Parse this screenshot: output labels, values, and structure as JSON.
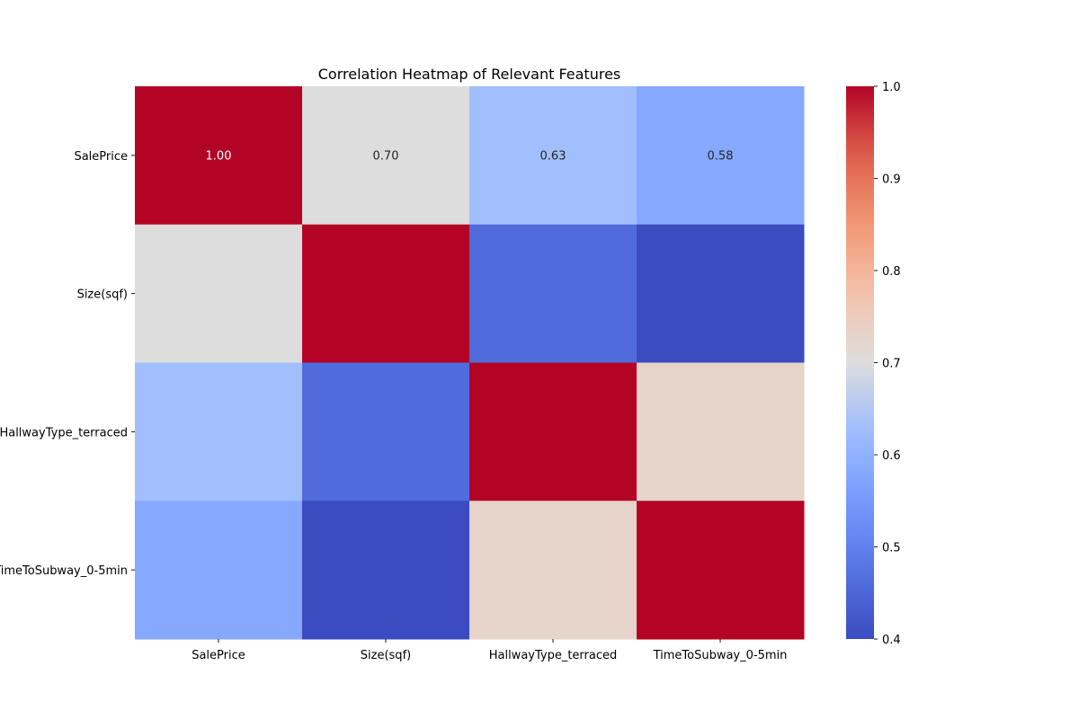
{
  "chart_data": {
    "type": "heatmap",
    "title": "Correlation Heatmap of Relevant Features",
    "xlabel": "",
    "ylabel": "",
    "rows": [
      "SalePrice",
      "Size(sqf)",
      "HallwayType_terraced",
      "TimeToSubway_0-5min"
    ],
    "columns": [
      "SalePrice",
      "Size(sqf)",
      "HallwayType_terraced",
      "TimeToSubway_0-5min"
    ],
    "values": [
      [
        1.0,
        0.7,
        0.63,
        0.58
      ],
      [
        0.7,
        1.0,
        0.46,
        0.4
      ],
      [
        0.63,
        0.46,
        1.0,
        0.73
      ],
      [
        0.58,
        0.4,
        0.73,
        1.0
      ]
    ],
    "annotated_rows": [
      0
    ],
    "annotation_format": "0.00",
    "colormap": "coolwarm",
    "vmin": 0.4,
    "vmax": 1.0,
    "colorbar_ticks": [
      "0.4",
      "0.5",
      "0.6",
      "0.7",
      "0.8",
      "0.9",
      "1.0"
    ]
  }
}
